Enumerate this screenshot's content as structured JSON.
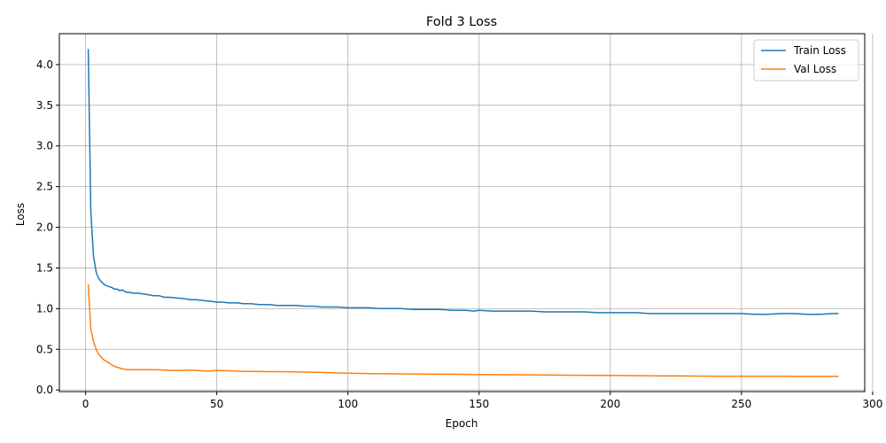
{
  "chart_data": {
    "type": "line",
    "title": "Fold 3 Loss",
    "xlabel": "Epoch",
    "ylabel": "Loss",
    "xlim": [
      -10,
      297
    ],
    "ylim": [
      -0.02,
      4.38
    ],
    "xticks": [
      0,
      50,
      100,
      150,
      200,
      250,
      300
    ],
    "yticks": [
      0.0,
      0.5,
      1.0,
      1.5,
      2.0,
      2.5,
      3.0,
      3.5,
      4.0
    ],
    "xtick_labels": [
      "0",
      "50",
      "100",
      "150",
      "200",
      "250",
      "300"
    ],
    "ytick_labels": [
      "0.0",
      "0.5",
      "1.0",
      "1.5",
      "2.0",
      "2.5",
      "3.0",
      "3.5",
      "4.0"
    ],
    "grid": true,
    "legend_position": "top-right",
    "series": [
      {
        "name": "Train Loss",
        "color": "#1f77b4",
        "x": [
          1,
          2,
          3,
          4,
          5,
          6,
          7,
          8,
          9,
          10,
          11,
          12,
          13,
          14,
          15,
          16,
          17,
          18,
          19,
          20,
          22,
          24,
          26,
          28,
          30,
          32,
          35,
          38,
          40,
          42,
          45,
          48,
          50,
          52,
          55,
          58,
          60,
          63,
          66,
          70,
          73,
          76,
          80,
          84,
          87,
          90,
          93,
          96,
          100,
          104,
          108,
          112,
          116,
          120,
          125,
          130,
          135,
          140,
          145,
          148,
          150,
          155,
          160,
          165,
          170,
          175,
          180,
          185,
          190,
          195,
          200,
          205,
          210,
          215,
          220,
          225,
          230,
          235,
          240,
          245,
          250,
          255,
          260,
          265,
          270,
          275,
          280,
          285,
          287
        ],
        "y": [
          4.19,
          2.2,
          1.65,
          1.45,
          1.37,
          1.33,
          1.3,
          1.28,
          1.27,
          1.26,
          1.24,
          1.24,
          1.22,
          1.23,
          1.21,
          1.2,
          1.2,
          1.19,
          1.19,
          1.19,
          1.18,
          1.17,
          1.16,
          1.16,
          1.14,
          1.14,
          1.13,
          1.12,
          1.11,
          1.11,
          1.1,
          1.09,
          1.08,
          1.08,
          1.07,
          1.07,
          1.06,
          1.06,
          1.05,
          1.05,
          1.04,
          1.04,
          1.04,
          1.03,
          1.03,
          1.02,
          1.02,
          1.02,
          1.01,
          1.01,
          1.01,
          1.0,
          1.0,
          1.0,
          0.99,
          0.99,
          0.99,
          0.98,
          0.98,
          0.97,
          0.98,
          0.97,
          0.97,
          0.97,
          0.97,
          0.96,
          0.96,
          0.96,
          0.96,
          0.95,
          0.95,
          0.95,
          0.95,
          0.94,
          0.94,
          0.94,
          0.94,
          0.94,
          0.94,
          0.94,
          0.94,
          0.93,
          0.93,
          0.94,
          0.94,
          0.93,
          0.93,
          0.94,
          0.94
        ]
      },
      {
        "name": "Val Loss",
        "color": "#ff7f0e",
        "x": [
          1,
          2,
          3,
          4,
          5,
          6,
          7,
          8,
          9,
          10,
          11,
          12,
          13,
          14,
          15,
          16,
          17,
          18,
          20,
          22,
          25,
          28,
          30,
          33,
          36,
          40,
          43,
          46,
          50,
          55,
          60,
          65,
          70,
          75,
          80,
          85,
          90,
          95,
          100,
          110,
          120,
          130,
          140,
          150,
          160,
          170,
          180,
          190,
          200,
          210,
          220,
          230,
          240,
          250,
          260,
          270,
          280,
          287
        ],
        "y": [
          1.3,
          0.75,
          0.6,
          0.5,
          0.44,
          0.4,
          0.37,
          0.35,
          0.33,
          0.31,
          0.29,
          0.28,
          0.27,
          0.26,
          0.255,
          0.25,
          0.25,
          0.25,
          0.25,
          0.25,
          0.25,
          0.248,
          0.245,
          0.24,
          0.24,
          0.245,
          0.238,
          0.232,
          0.24,
          0.235,
          0.228,
          0.228,
          0.225,
          0.225,
          0.222,
          0.22,
          0.215,
          0.21,
          0.205,
          0.2,
          0.198,
          0.195,
          0.193,
          0.19,
          0.188,
          0.186,
          0.183,
          0.18,
          0.178,
          0.176,
          0.174,
          0.172,
          0.17,
          0.17,
          0.169,
          0.168,
          0.168,
          0.168
        ]
      }
    ]
  }
}
